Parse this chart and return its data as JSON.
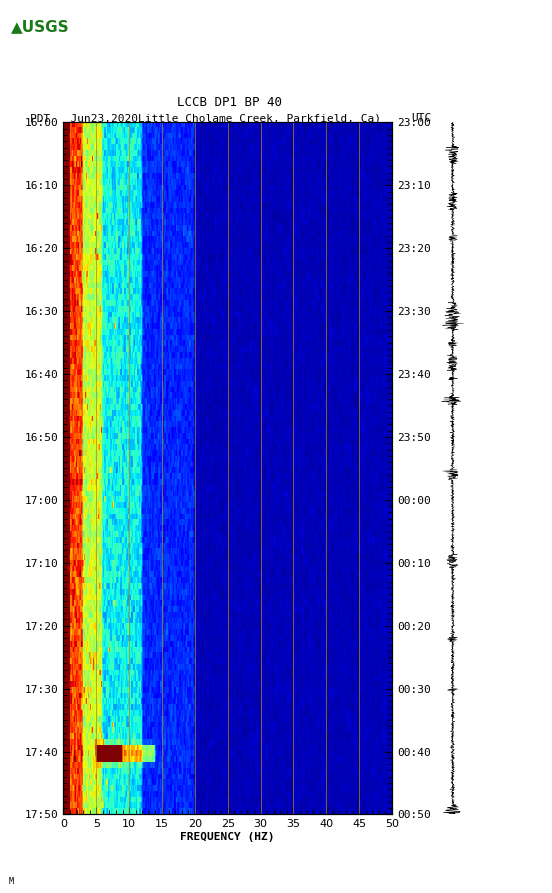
{
  "title_line1": "LCCB DP1 BP 40",
  "title_line2_left": "PDT   Jun23,2020Little Cholame Creek, Parkfield, Ca)",
  "title_line2_right": "UTC",
  "left_time_labels": [
    "16:00",
    "16:10",
    "16:20",
    "16:30",
    "16:40",
    "16:50",
    "17:00",
    "17:10",
    "17:20",
    "17:30",
    "17:40",
    "17:50"
  ],
  "right_time_labels": [
    "23:00",
    "23:10",
    "23:20",
    "23:30",
    "23:40",
    "23:50",
    "00:00",
    "00:10",
    "00:20",
    "00:30",
    "00:40",
    "00:50"
  ],
  "freq_min": 0,
  "freq_max": 50,
  "freq_ticks": [
    0,
    5,
    10,
    15,
    20,
    25,
    30,
    35,
    40,
    45,
    50
  ],
  "freq_gridlines": [
    5,
    10,
    15,
    20,
    25,
    30,
    35,
    40,
    45
  ],
  "xlabel": "FREQUENCY (HZ)",
  "background_color": "#ffffff",
  "colormap": "jet",
  "fig_width": 5.52,
  "fig_height": 8.93,
  "usgs_text": "USGS",
  "bottom_label": "M"
}
